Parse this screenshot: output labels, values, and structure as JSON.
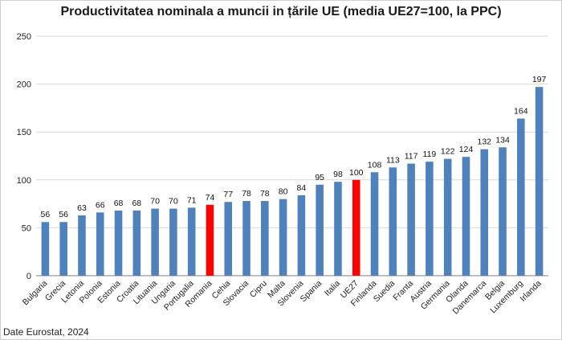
{
  "chart_data": {
    "type": "bar",
    "title": "Productivitatea nominala a muncii in țările UE (media UE27=100, la PPC)",
    "source": "Date Eurostat, 2024",
    "categories": [
      "Bulgaria",
      "Grecia",
      "Letonia",
      "Polonia",
      "Estonia",
      "Croatia",
      "Lituania",
      "Ungaria",
      "Portugalia",
      "Romania",
      "Cehia",
      "Slovacia",
      "Cipru",
      "Malta",
      "Slovenia",
      "Spania",
      "Italia",
      "UE27",
      "Finlanda",
      "Suedia",
      "Franta",
      "Austria",
      "Germania",
      "Olanda",
      "Danemarca",
      "Belgia",
      "Luxemburg",
      "Irlanda"
    ],
    "values": [
      56,
      56,
      63,
      66,
      68,
      68,
      70,
      70,
      71,
      74,
      77,
      78,
      78,
      80,
      84,
      95,
      98,
      100,
      108,
      113,
      117,
      119,
      122,
      124,
      132,
      134,
      164,
      197
    ],
    "ylim": [
      0,
      250
    ],
    "yticks": [
      0,
      50,
      100,
      150,
      200,
      250
    ],
    "grid": true,
    "legend": "none",
    "colors": {
      "default": "#4f81bd",
      "highlight": "#ff0000"
    },
    "highlight": [
      "Romania",
      "UE27"
    ]
  }
}
